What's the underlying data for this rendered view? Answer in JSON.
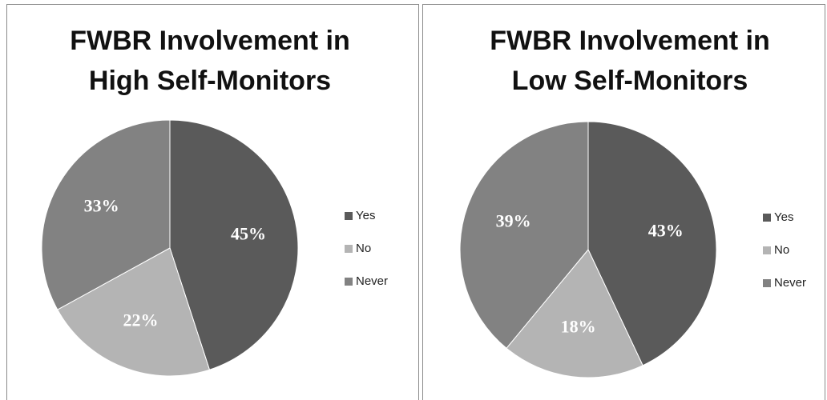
{
  "chart_data": [
    {
      "type": "pie",
      "title": "FWBR Involvement in High Self-Monitors",
      "categories": [
        "Yes",
        "No",
        "Never"
      ],
      "values": [
        45,
        22,
        33
      ],
      "value_labels": [
        "45%",
        "22%",
        "33%"
      ],
      "colors": [
        "#5a5a5a",
        "#b4b4b4",
        "#828282"
      ]
    },
    {
      "type": "pie",
      "title": "FWBR Involvement in Low Self-Monitors",
      "categories": [
        "Yes",
        "No",
        "Never"
      ],
      "values": [
        43,
        18,
        39
      ],
      "value_labels": [
        "43%",
        "18%",
        "39%"
      ],
      "colors": [
        "#5a5a5a",
        "#b4b4b4",
        "#828282"
      ]
    }
  ]
}
